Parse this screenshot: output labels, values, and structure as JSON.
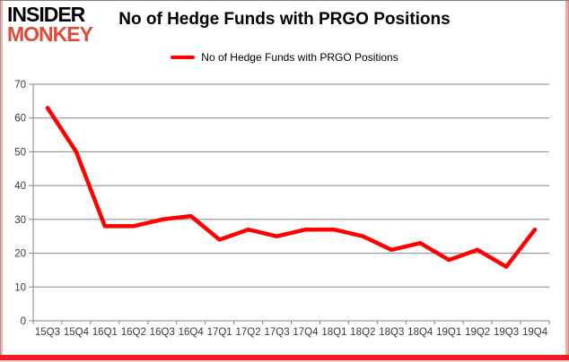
{
  "brand": {
    "line1": "INSIDER",
    "line2": "MONKEY",
    "line1_color": "#000000",
    "line2_color": "#dd4b39"
  },
  "header": {
    "title": "No of Hedge Funds with PRGO Positions"
  },
  "legend": {
    "label": "No of Hedge Funds with PRGO Positions",
    "line_color": "#ff0000"
  },
  "chart_data": {
    "type": "line",
    "title": "No of Hedge Funds with PRGO Positions",
    "categories": [
      "15Q3",
      "15Q4",
      "16Q1",
      "16Q2",
      "16Q3",
      "16Q4",
      "17Q1",
      "17Q2",
      "17Q3",
      "17Q4",
      "18Q1",
      "18Q2",
      "18Q3",
      "18Q4",
      "19Q1",
      "19Q2",
      "19Q3",
      "19Q4"
    ],
    "series": [
      {
        "name": "No of Hedge Funds with PRGO Positions",
        "values": [
          63,
          50,
          28,
          28,
          30,
          31,
          24,
          27,
          25,
          27,
          27,
          25,
          21,
          23,
          18,
          21,
          16,
          27
        ],
        "color": "#ff0000"
      }
    ],
    "xlabel": "",
    "ylabel": "",
    "ylim": [
      0,
      70
    ],
    "ytick_step": 10,
    "grid": true,
    "legend_position": "top",
    "gridline_color": "#848484",
    "axis_color": "#848484",
    "tick_label_color": "#3a3a3a"
  }
}
